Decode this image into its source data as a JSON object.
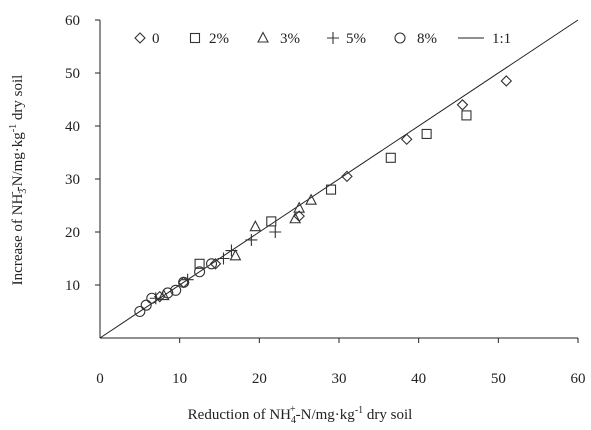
{
  "chart_data": {
    "type": "scatter",
    "xlabel": {
      "prefix": "Reduction of NH",
      "sub": "4",
      "sup": "+",
      "middle": "-N/mg·kg",
      "unit_sup": "-1",
      "suffix": " dry soil"
    },
    "ylabel": {
      "prefix": "Increase of NH",
      "sub": "3",
      "sup": "-",
      "middle": "-N/mg·kg",
      "unit_sup": "-1",
      "suffix": " dry soil"
    },
    "xlim": [
      0,
      60
    ],
    "ylim": [
      0,
      60
    ],
    "x_ticks": [
      "0",
      "10",
      "20",
      "30",
      "40",
      "50",
      "60"
    ],
    "y_ticks": [
      "10",
      "20",
      "30",
      "40",
      "50",
      "60"
    ],
    "grid": false,
    "legend_position": "top",
    "series": [
      {
        "name": "0",
        "marker": "diamond",
        "points": [
          [
            7.5,
            7.8
          ],
          [
            10.5,
            10.5
          ],
          [
            14.5,
            14.0
          ],
          [
            25.0,
            23.0
          ],
          [
            31.0,
            30.5
          ],
          [
            38.5,
            37.5
          ],
          [
            45.5,
            44.0
          ],
          [
            51.0,
            48.5
          ]
        ]
      },
      {
        "name": "2%",
        "marker": "square",
        "points": [
          [
            12.5,
            14.0
          ],
          [
            21.5,
            22.0
          ],
          [
            29.0,
            28.0
          ],
          [
            36.5,
            34.0
          ],
          [
            41.0,
            38.5
          ],
          [
            46.0,
            42.0
          ]
        ]
      },
      {
        "name": "3%",
        "marker": "triangle",
        "points": [
          [
            8.0,
            8.0
          ],
          [
            17.0,
            15.5
          ],
          [
            19.5,
            21.0
          ],
          [
            24.5,
            22.5
          ],
          [
            25.0,
            24.5
          ],
          [
            26.5,
            26.0
          ]
        ]
      },
      {
        "name": "5%",
        "marker": "plus",
        "points": [
          [
            7.0,
            7.5
          ],
          [
            11.0,
            11.0
          ],
          [
            15.5,
            15.0
          ],
          [
            16.5,
            16.5
          ],
          [
            19.0,
            18.5
          ],
          [
            22.0,
            20.0
          ]
        ]
      },
      {
        "name": "8%",
        "marker": "circle",
        "points": [
          [
            5.0,
            5.0
          ],
          [
            5.8,
            6.2
          ],
          [
            6.5,
            7.5
          ],
          [
            8.5,
            8.5
          ],
          [
            9.5,
            9.0
          ],
          [
            10.5,
            10.5
          ],
          [
            12.5,
            12.5
          ],
          [
            14.0,
            14.0
          ]
        ]
      }
    ],
    "reference_line": {
      "name": "1:1",
      "from": [
        0,
        0
      ],
      "to": [
        60,
        60
      ]
    }
  }
}
